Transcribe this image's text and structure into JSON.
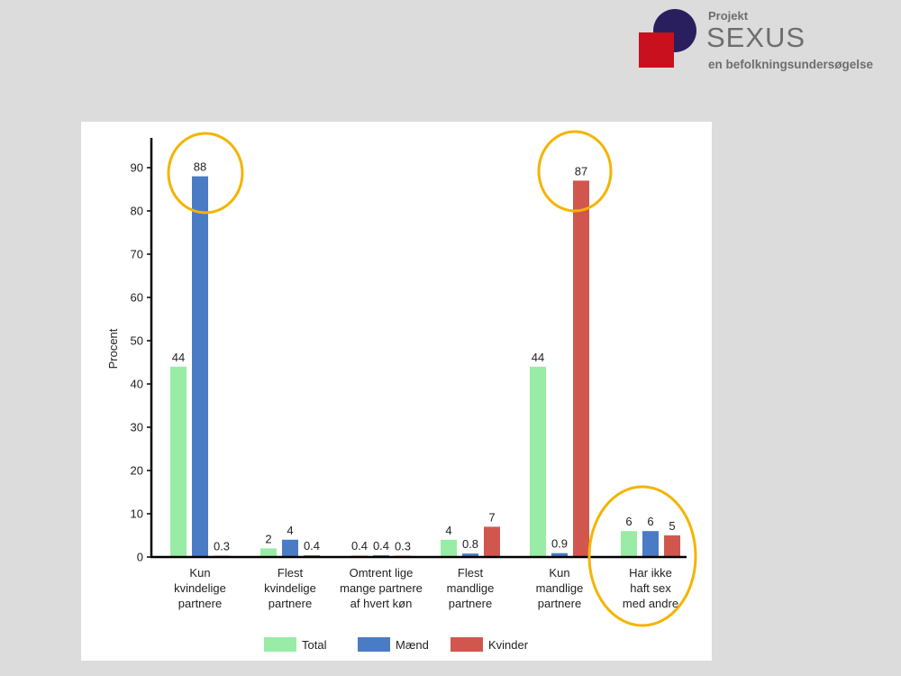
{
  "logo": {
    "small": "Projekt",
    "big": "SEXUS",
    "sub": "en befolkningsundersøgelse"
  },
  "colors": {
    "background": "#dcdcdc",
    "panel": "#ffffff",
    "highlight": "#f4b400",
    "logo_red": "#c8101e",
    "logo_navy": "#2a1f5e"
  },
  "chart_data": {
    "type": "bar",
    "ylabel": "Procent",
    "ylim": [
      0,
      95
    ],
    "yticks": [
      0,
      10,
      20,
      30,
      40,
      50,
      60,
      70,
      80,
      90
    ],
    "categories": [
      [
        "Kun",
        "kvindelige",
        "partnere"
      ],
      [
        "Flest",
        "kvindelige",
        "partnere"
      ],
      [
        "Omtrent lige",
        "mange partnere",
        "af hvert køn"
      ],
      [
        "Flest",
        "mandlige",
        "partnere"
      ],
      [
        "Kun",
        "mandlige",
        "partnere"
      ],
      [
        "Har ikke",
        "haft sex",
        "med andre"
      ]
    ],
    "series": [
      {
        "name": "Total",
        "color": "#98eca6",
        "values": [
          44,
          2,
          0.4,
          4,
          44,
          6
        ]
      },
      {
        "name": "Mænd",
        "color": "#4a7cc6",
        "values": [
          88,
          4,
          0.4,
          0.8,
          0.9,
          6
        ]
      },
      {
        "name": "Kvinder",
        "color": "#d1574e",
        "values": [
          0.3,
          0.4,
          0.3,
          7,
          87,
          5
        ]
      }
    ],
    "legend_position": "bottom",
    "grid": false,
    "highlights": [
      {
        "category": 0,
        "series": 1
      },
      {
        "category": 4,
        "series": 2
      },
      {
        "category": 5,
        "series": "all"
      }
    ]
  }
}
